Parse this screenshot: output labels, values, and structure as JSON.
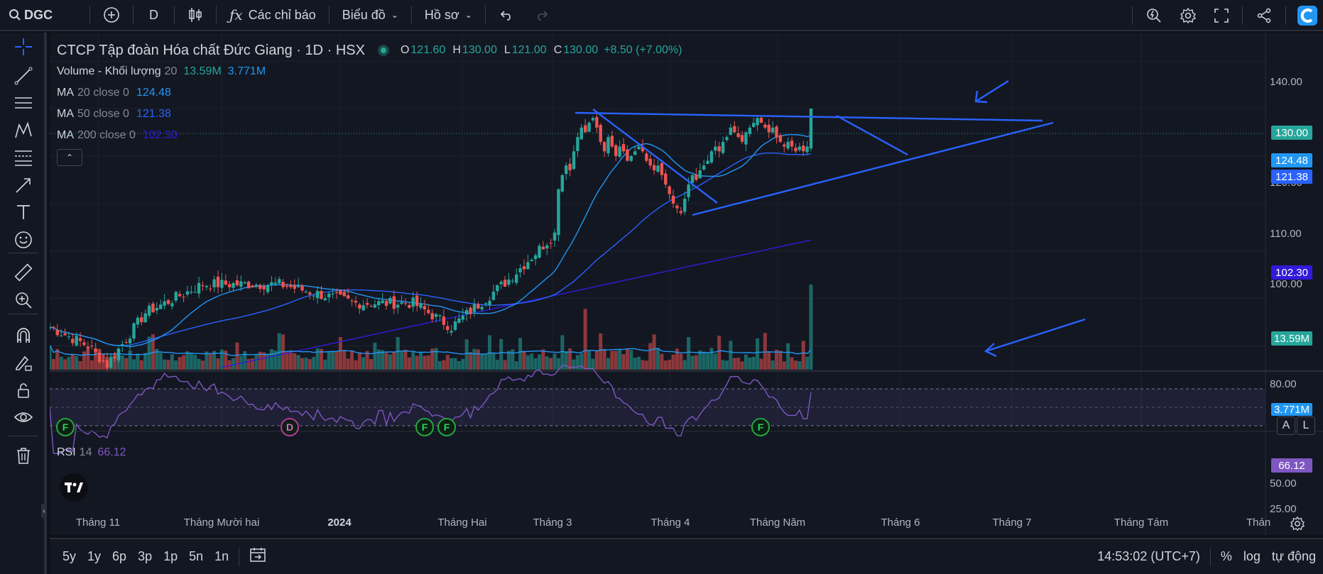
{
  "topbar": {
    "symbol": "DGC",
    "interval": "D",
    "indicators_label": "Các chỉ báo",
    "chart_menu_label": "Biểu đồ",
    "profile_menu_label": "Hồ sơ"
  },
  "legend": {
    "title": "CTCP Tập đoàn Hóa chất Đức Giang · 1D · HSX",
    "ohlc": {
      "o_label": "O",
      "o": "121.60",
      "h_label": "H",
      "h": "130.00",
      "l_label": "L",
      "l": "121.00",
      "c_label": "C",
      "c": "130.00",
      "change": "+8.50 (+7.00%)"
    },
    "volume": {
      "name": "Volume - Khối lượng",
      "param": "20",
      "v1": "13.59M",
      "v2": "3.771M"
    },
    "ma20": {
      "name": "MA",
      "param": "20 close 0",
      "value": "124.48"
    },
    "ma50": {
      "name": "MA",
      "param": "50 close 0",
      "value": "121.38"
    },
    "ma200": {
      "name": "MA",
      "param": "200 close 0",
      "value": "102.30"
    }
  },
  "price_axis": {
    "ticks": [
      "140.00",
      "120.00",
      "110.00",
      "100.00",
      "80.00"
    ],
    "labels": {
      "last": "130.00",
      "ma20": "124.48",
      "ma50": "121.38",
      "ma200": "102.30",
      "vol": "13.59M",
      "volma": "3.771M"
    },
    "colors": {
      "last": "#26a69a",
      "ma20": "#2196f3",
      "ma50": "#2962ff",
      "ma200": "#311bdb",
      "vol": "#26a69a",
      "volma": "#2196f3"
    }
  },
  "rsi": {
    "name": "RSI",
    "param": "14",
    "value": "66.12",
    "ticks": [
      "50.00",
      "25.00"
    ]
  },
  "time_axis": [
    "Tháng 11",
    "Tháng Mười hai",
    "2024",
    "Tháng Hai",
    "Tháng 3",
    "Tháng 4",
    "Tháng Năm",
    "Tháng 6",
    "Tháng 7",
    "Tháng Tám",
    "Tháng"
  ],
  "events": [
    "F",
    "D",
    "F",
    "F",
    "F"
  ],
  "scale_buttons": {
    "auto": "A",
    "log": "L"
  },
  "bottombar": {
    "ranges": [
      "5y",
      "1y",
      "6p",
      "3p",
      "1p",
      "5n",
      "1n"
    ],
    "clock": "14:53:02 (UTC+7)",
    "percent": "%",
    "log": "log",
    "auto": "tự động"
  },
  "chart_data": {
    "type": "candlestick",
    "ylim": [
      75,
      146
    ],
    "start": 84,
    "peak": 128,
    "end": 130,
    "volume_last": 13.59,
    "volume_ma": 3.771
  }
}
